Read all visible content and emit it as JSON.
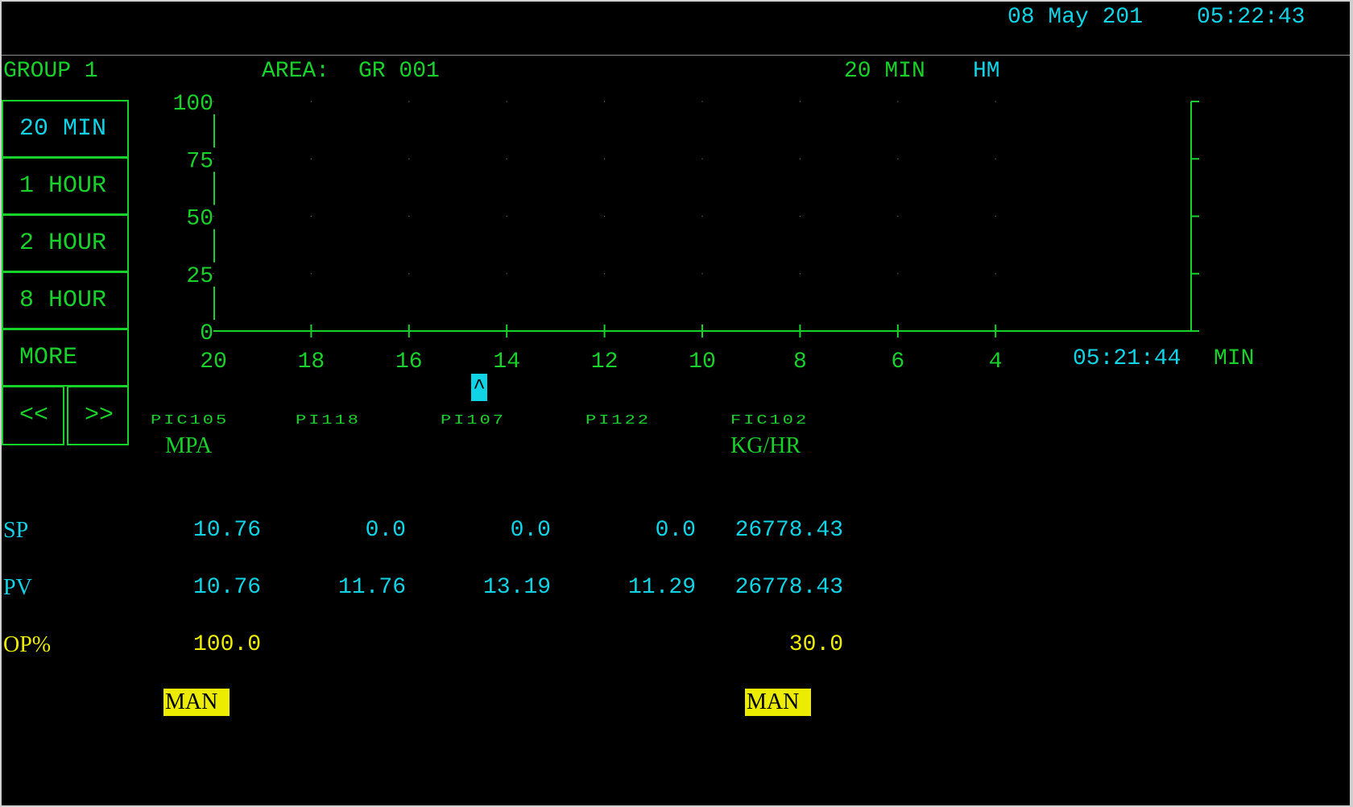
{
  "header": {
    "date": "08 May 201",
    "time": "05:22:43",
    "group": "GROUP 1",
    "area_label": "AREA:",
    "area_value": "GR 001",
    "range": "20 MIN",
    "mode": "HM"
  },
  "sidebar": {
    "buttons": [
      "20 MIN",
      "1 HOUR",
      "2 HOUR",
      "8 HOUR",
      "MORE"
    ],
    "prev": "<<",
    "next": ">>"
  },
  "trend": {
    "y_ticks": [
      "100",
      "75",
      "50",
      "25",
      "0"
    ],
    "x_ticks": [
      "20",
      "18",
      "16",
      "14",
      "12",
      "10",
      "8",
      "6",
      "4"
    ],
    "end_time": "05:21:44",
    "end_unit": "MIN",
    "cursor_symbol": "^"
  },
  "chart_data": {
    "type": "line",
    "ylim": [
      0,
      100
    ],
    "xlim": [
      20,
      0
    ],
    "x_ticks": [
      20,
      18,
      16,
      14,
      12,
      10,
      8,
      6,
      4
    ],
    "y_ticks": [
      0,
      25,
      50,
      75,
      100
    ],
    "xlabel": "MIN",
    "grid": true,
    "series": []
  },
  "points": {
    "tags": [
      "PIC105",
      "PI118",
      "PI107",
      "PI122",
      "FIC102"
    ],
    "units": [
      "MPA",
      "",
      "",
      "",
      "KG/HR"
    ],
    "row_labels": {
      "sp": "SP",
      "pv": "PV",
      "op": "OP%"
    },
    "sp": [
      "10.76",
      "0.0",
      "0.0",
      "0.0",
      "26778.43"
    ],
    "pv": [
      "10.76",
      "11.76",
      "13.19",
      "11.29",
      "26778.43"
    ],
    "op": [
      "100.0",
      "",
      "",
      "",
      "30.0"
    ],
    "mode": [
      "MAN",
      "",
      "",
      "",
      "MAN"
    ]
  },
  "colors": {
    "background": "#000000",
    "green": "#19d12b",
    "cyan": "#10d3e6",
    "yellow": "#ecec00"
  }
}
